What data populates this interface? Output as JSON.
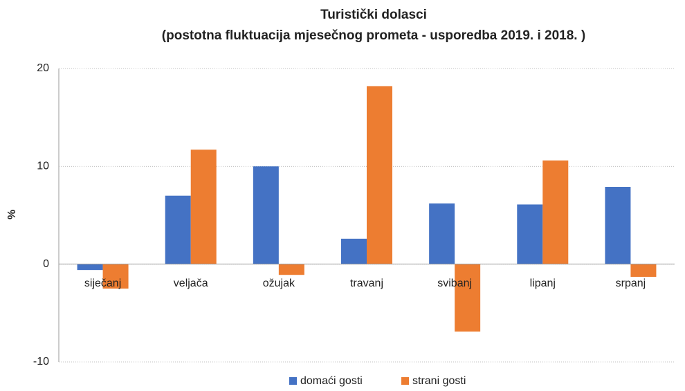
{
  "chart_data": {
    "type": "bar",
    "title": "Turistički dolasci",
    "subtitle": "(postotna fluktuacija mjesečnog prometa - usporedba 2019. i 2018. )",
    "y_label": "%",
    "categories": [
      "siječanj",
      "veljača",
      "ožujak",
      "travanj",
      "svibanj",
      "lipanj",
      "srpanj"
    ],
    "series": [
      {
        "name": "domaći gosti",
        "color": "#4472c4",
        "values": [
          -0.6,
          7.0,
          10.0,
          2.6,
          6.2,
          6.1,
          7.9
        ]
      },
      {
        "name": "strani gosti",
        "color": "#ed7d31",
        "values": [
          -2.5,
          11.7,
          -1.1,
          18.2,
          -6.9,
          10.6,
          -1.3
        ]
      }
    ],
    "ylim": [
      -10,
      20
    ],
    "yticks": [
      -10,
      0,
      10,
      20
    ],
    "grid": true,
    "legend": "bottom"
  }
}
